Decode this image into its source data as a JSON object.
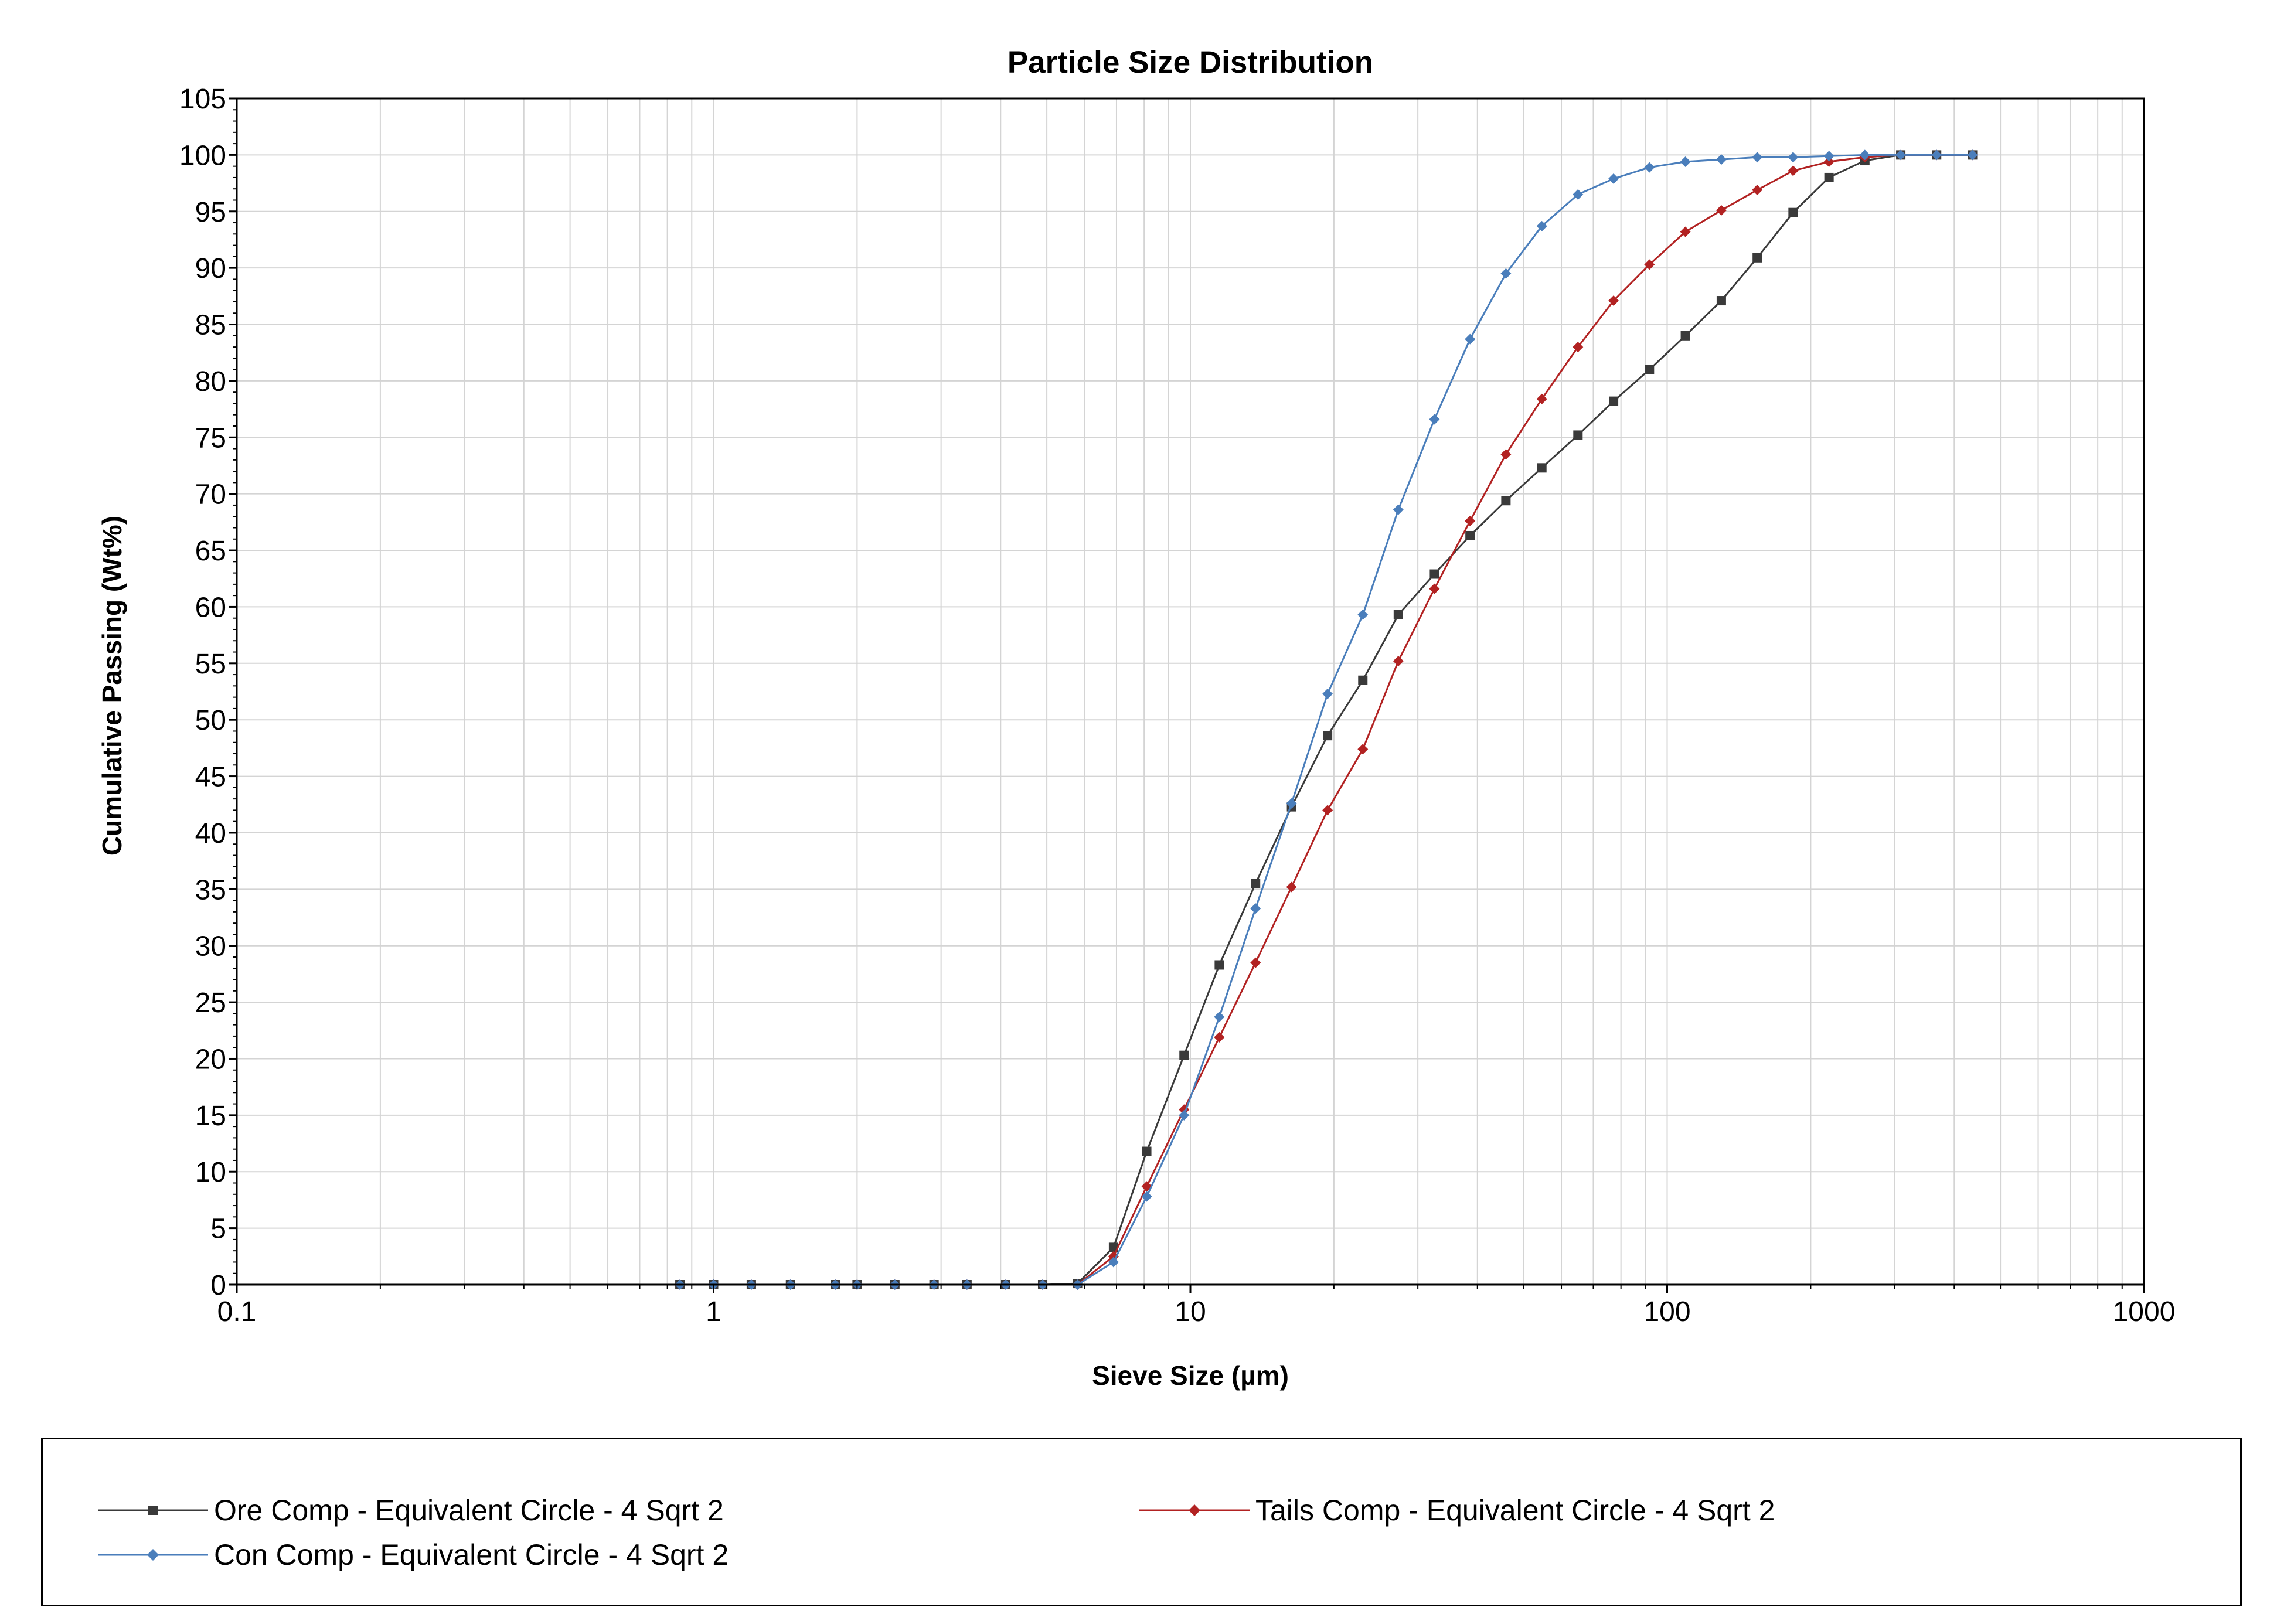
{
  "chart_data": {
    "type": "line",
    "title": "Particle Size Distribution",
    "xlabel": "Sieve Size (µm)",
    "ylabel": "Cumulative Passing (Wt%)",
    "x_scale": "log",
    "xlim": [
      0.1,
      1000
    ],
    "ylim": [
      0,
      105
    ],
    "grid": true,
    "legend_position": "bottom",
    "x_tick_labels": [
      "0.1",
      "1",
      "10",
      "100",
      "1000"
    ],
    "y_tick_labels": [
      "0",
      "5",
      "10",
      "15",
      "20",
      "25",
      "30",
      "35",
      "40",
      "45",
      "50",
      "55",
      "60",
      "65",
      "70",
      "75",
      "80",
      "85",
      "90",
      "95",
      "100",
      "105"
    ],
    "series": [
      {
        "name": "Ore Comp - Equivalent Circle - 4 Sqrt 2",
        "color": "#3a3a3a",
        "marker": "square",
        "x": [
          0.85,
          1.0,
          1.2,
          1.45,
          1.8,
          2.0,
          2.4,
          2.9,
          3.4,
          4.1,
          4.9,
          5.8,
          6.9,
          8.1,
          9.7,
          11.5,
          13.7,
          16.3,
          19.4,
          23.0,
          27.3,
          32.5,
          38.6,
          45.9,
          54.6,
          65.0,
          77.2,
          91.8,
          109.2,
          129.9,
          154.5,
          183.7,
          218.5,
          259.8,
          309.0,
          367.4,
          437.0
        ],
        "y": [
          0,
          0,
          0,
          0,
          0,
          0,
          0,
          0,
          0,
          0,
          0,
          0.1,
          3.3,
          11.8,
          20.3,
          28.3,
          35.5,
          42.3,
          48.6,
          53.5,
          59.3,
          62.9,
          66.3,
          69.4,
          72.3,
          75.2,
          78.2,
          81.0,
          84.0,
          87.1,
          90.9,
          94.9,
          98.0,
          99.5,
          100,
          100,
          100
        ]
      },
      {
        "name": "Tails Comp - Equivalent Circle - 4 Sqrt 2",
        "color": "#b22222",
        "marker": "diamond",
        "x": [
          0.85,
          1.0,
          1.2,
          1.45,
          1.8,
          2.0,
          2.4,
          2.9,
          3.4,
          4.1,
          4.9,
          5.8,
          6.9,
          8.1,
          9.7,
          11.5,
          13.7,
          16.3,
          19.4,
          23.0,
          27.3,
          32.5,
          38.6,
          45.9,
          54.6,
          65.0,
          77.2,
          91.8,
          109.2,
          129.9,
          154.5,
          183.7,
          218.5,
          259.8,
          309.0,
          367.4,
          437.0
        ],
        "y": [
          0,
          0,
          0,
          0,
          0,
          0,
          0,
          0,
          0,
          0,
          0,
          0,
          2.5,
          8.7,
          15.5,
          21.9,
          28.5,
          35.2,
          42.0,
          47.4,
          55.2,
          61.6,
          67.6,
          73.5,
          78.4,
          83.0,
          87.1,
          90.3,
          93.2,
          95.1,
          96.9,
          98.6,
          99.4,
          99.8,
          100,
          100,
          100
        ]
      },
      {
        "name": "Con Comp - Equivalent Circle - 4 Sqrt 2",
        "color": "#4a7ebb",
        "marker": "diamond",
        "x": [
          0.85,
          1.0,
          1.2,
          1.45,
          1.8,
          2.0,
          2.4,
          2.9,
          3.4,
          4.1,
          4.9,
          5.8,
          6.9,
          8.1,
          9.7,
          11.5,
          13.7,
          16.3,
          19.4,
          23.0,
          27.3,
          32.5,
          38.6,
          45.9,
          54.6,
          65.0,
          77.2,
          91.8,
          109.2,
          129.9,
          154.5,
          183.7,
          218.5,
          259.8,
          309.0,
          367.4,
          437.0
        ],
        "y": [
          0,
          0,
          0,
          0,
          0,
          0,
          0,
          0,
          0,
          0,
          0,
          0,
          2.0,
          7.8,
          15.0,
          23.7,
          33.3,
          42.6,
          52.3,
          59.3,
          68.6,
          76.6,
          83.7,
          89.5,
          93.7,
          96.5,
          97.9,
          98.9,
          99.4,
          99.6,
          99.8,
          99.8,
          99.9,
          100,
          100,
          100,
          100
        ]
      }
    ]
  }
}
